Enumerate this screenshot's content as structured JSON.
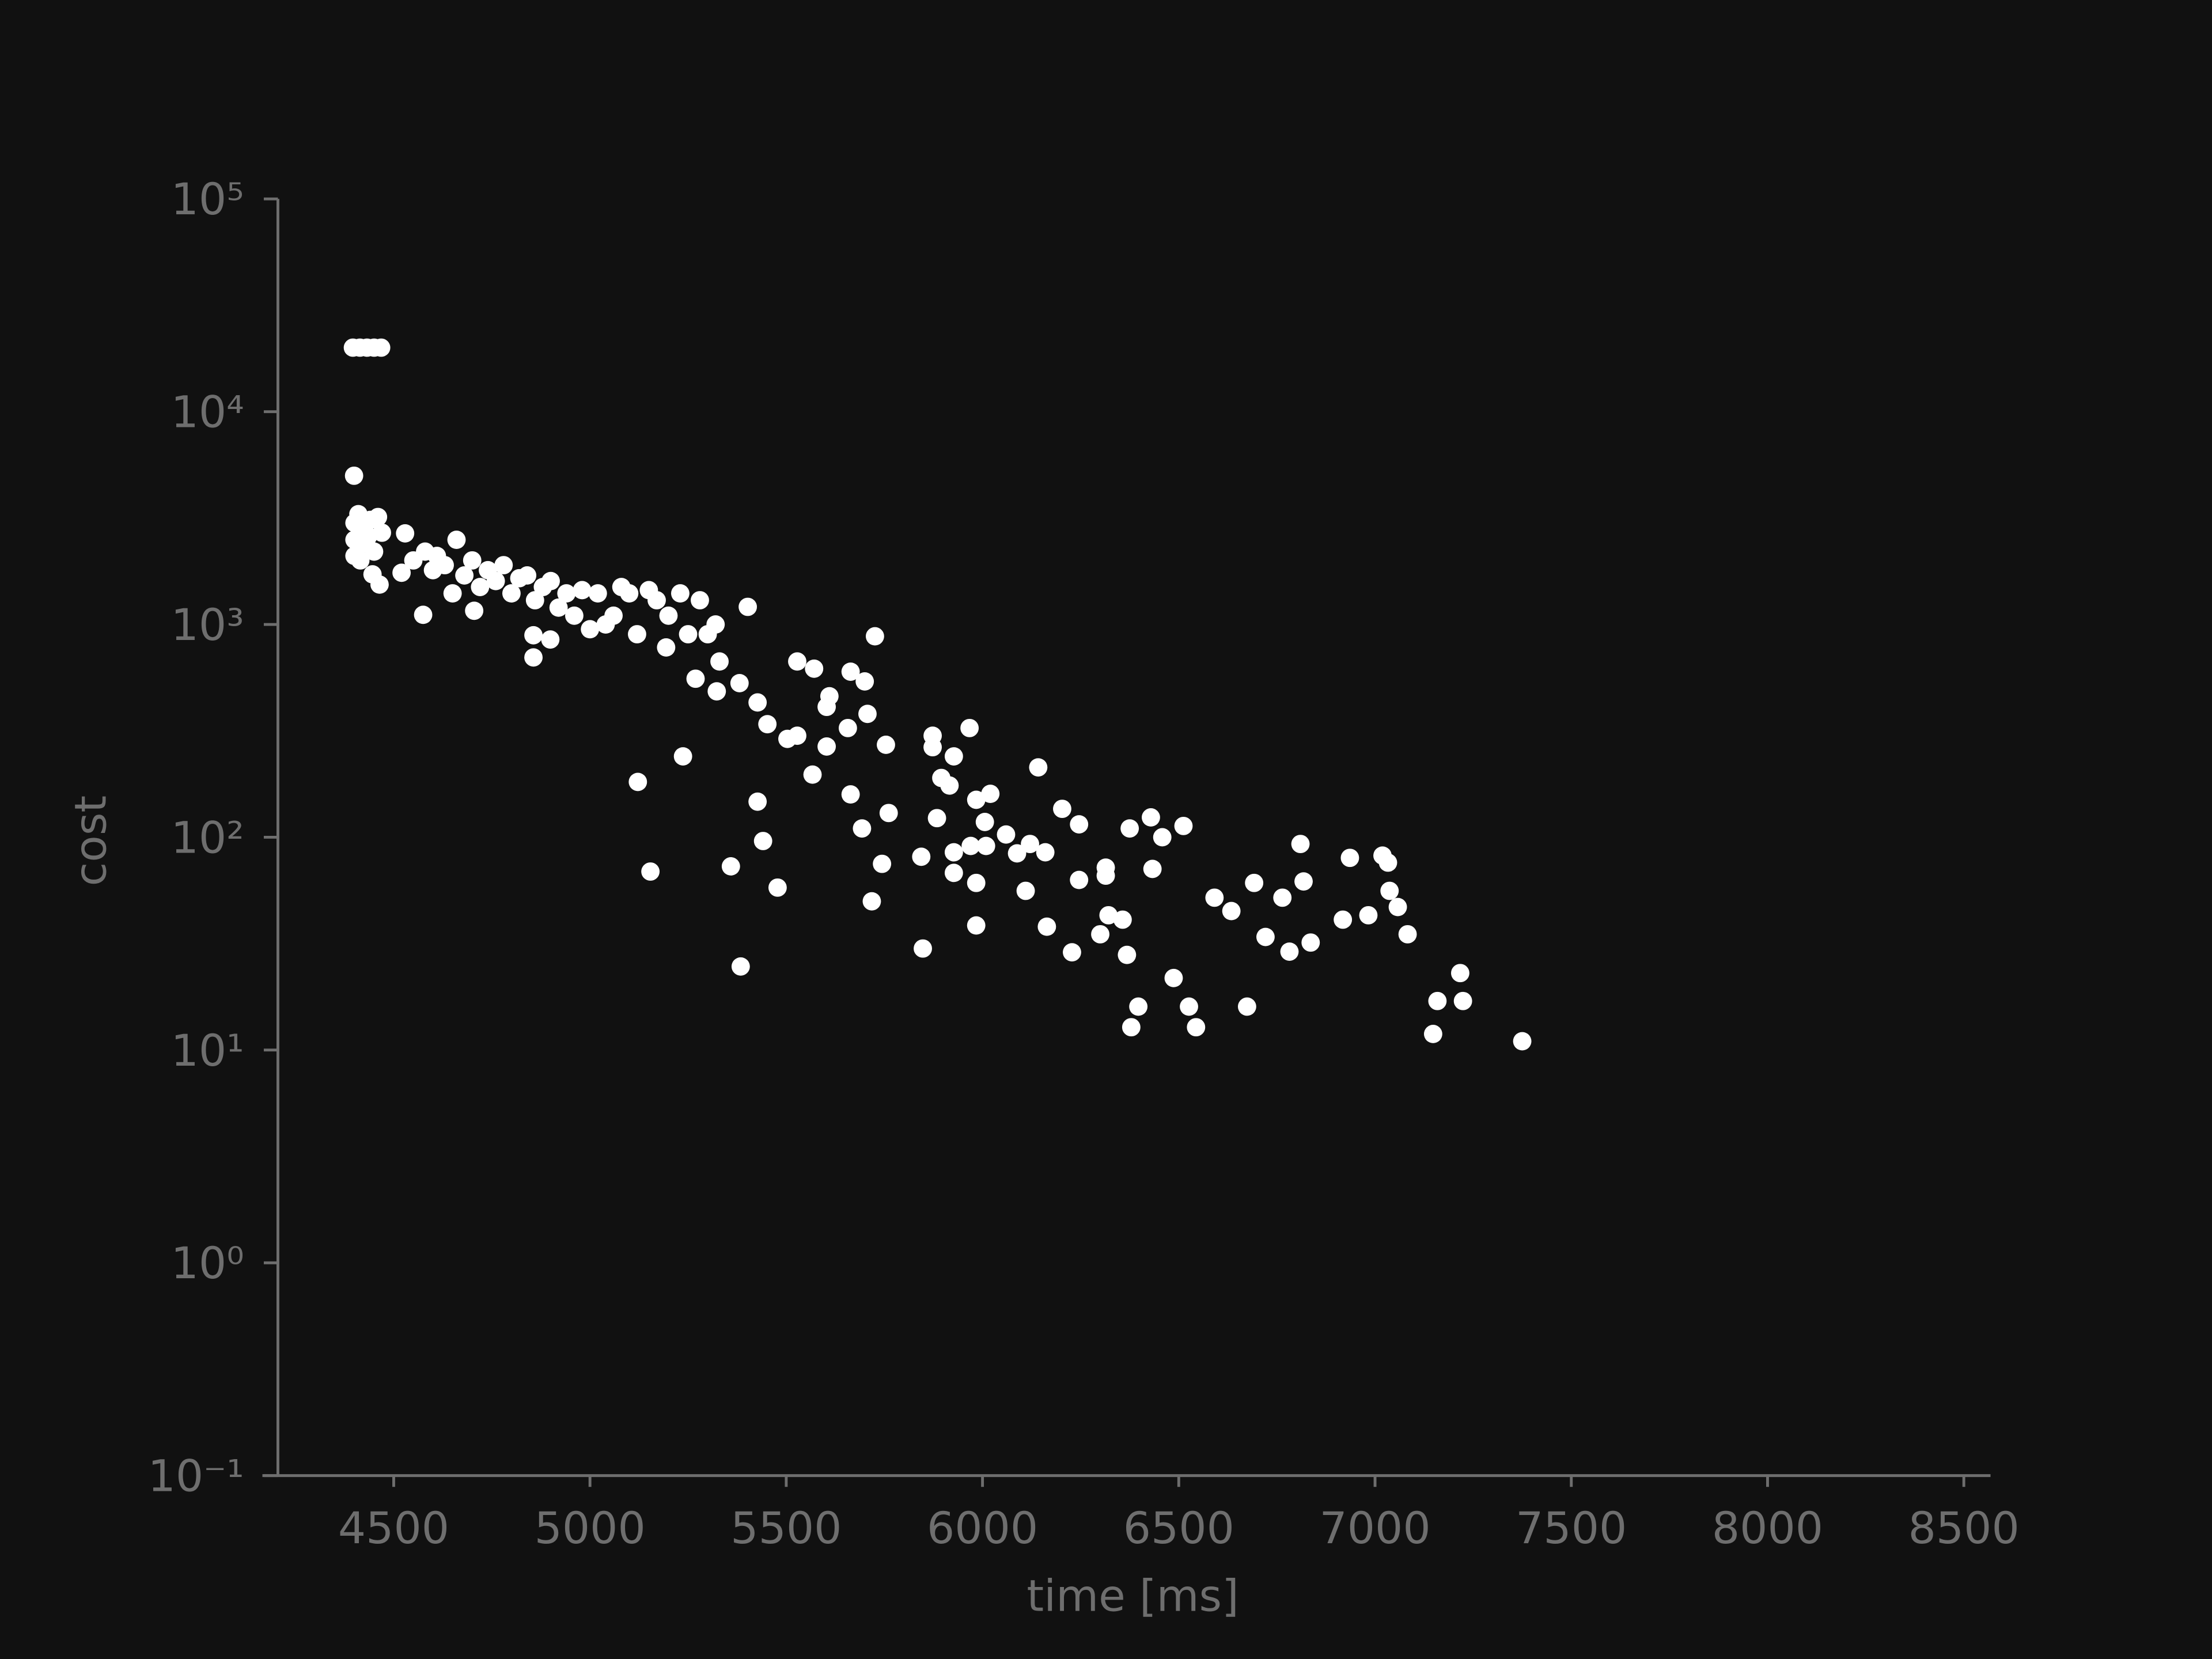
{
  "chart_data": {
    "type": "scatter",
    "x_label": "time [ms]",
    "y_label": "cost",
    "yscale": "log",
    "color": "#ffffff",
    "xlim": [
      4205,
      8568
    ],
    "xticks": [
      4500,
      5000,
      5500,
      6000,
      6500,
      7000,
      7500,
      8000,
      8500
    ],
    "ylim": [
      0.1,
      100000
    ],
    "yticks": [
      {
        "value": 0.1,
        "label": "10⁻¹"
      },
      {
        "value": 1,
        "label": "10⁰"
      },
      {
        "value": 10,
        "label": "10¹"
      },
      {
        "value": 100,
        "label": "10²"
      },
      {
        "value": 1000,
        "label": "10³"
      },
      {
        "value": 10000,
        "label": "10⁴"
      },
      {
        "value": 100000,
        "label": "10⁵"
      }
    ],
    "x": [
      4396,
      4414,
      4432,
      4450,
      4468,
      4399,
      4400,
      4400,
      4400,
      4410,
      4420,
      4430,
      4440,
      4450,
      4460,
      4470,
      4415,
      4435,
      4446,
      4464,
      4529,
      4520,
      4550,
      4580,
      4600,
      4610,
      4630,
      4650,
      4660,
      4680,
      4700,
      4720,
      4740,
      4760,
      4780,
      4800,
      4820,
      4840,
      4860,
      4880,
      4900,
      4920,
      4940,
      4960,
      4980,
      5000,
      5020,
      5040,
      5060,
      5080,
      5100,
      5120,
      5150,
      5170,
      5200,
      5230,
      5250,
      5280,
      5300,
      5320,
      4575,
      4705,
      4856,
      4856,
      4899,
      5122,
      5154,
      5194,
      5237,
      5269,
      5323,
      5330,
      5359,
      5384,
      5402,
      5381,
      5427,
      5427,
      5441,
      5452,
      5478,
      5503,
      5528,
      5528,
      5567,
      5571,
      5603,
      5603,
      5610,
      5657,
      5664,
      5664,
      5693,
      5700,
      5707,
      5718,
      5726,
      5744,
      5754,
      5761,
      5844,
      5848,
      5873,
      5873,
      5884,
      5895,
      5916,
      5927,
      5927,
      5927,
      5967,
      5970,
      5984,
      5984,
      5984,
      6006,
      6009,
      6020,
      6060,
      6088,
      6110,
      6121,
      6142,
      6160,
      6164,
      6203,
      6228,
      6246,
      6246,
      6300,
      6314,
      6314,
      6321,
      6357,
      6368,
      6375,
      6379,
      6397,
      6429,
      6433,
      6458,
      6487,
      6512,
      6526,
      6544,
      6591,
      6634,
      6674,
      6692,
      6721,
      6764,
      6782,
      6810,
      6818,
      6836,
      6918,
      6936,
      6983,
      7019,
      7033,
      7037,
      7058,
      7083,
      7148,
      7159,
      7217,
      7224,
      7375
    ],
    "values": [
      20000,
      20000,
      20000,
      20000,
      20000,
      5000,
      3000,
      2500,
      2100,
      3300,
      2800,
      2400,
      3100,
      2200,
      3200,
      2700,
      2000,
      2600,
      1720,
      1540,
      2680,
      1750,
      2000,
      2200,
      1800,
      2100,
      1900,
      1400,
      2500,
      1700,
      2000,
      1500,
      1800,
      1600,
      1900,
      1400,
      1650,
      1700,
      1300,
      1500,
      1600,
      1200,
      1400,
      1100,
      1450,
      950,
      1400,
      1000,
      1100,
      1500,
      1400,
      900,
      1450,
      1300,
      1100,
      1400,
      900,
      1300,
      900,
      1000,
      1110,
      1160,
      700,
      890,
      850,
      182,
      69,
      780,
      240,
      556,
      485,
      670,
      73,
      24.7,
      1210,
      530,
      430,
      147,
      96,
      340,
      58,
      290,
      670,
      300,
      197,
      620,
      267,
      410,
      460,
      326,
      159,
      600,
      110,
      540,
      380,
      50,
      880,
      75,
      272,
      130,
      81,
      30,
      300,
      265,
      123,
      190,
      175,
      85,
      68,
      240,
      326,
      91,
      150,
      61,
      38.5,
      118,
      91,
      160,
      103,
      84,
      56,
      93,
      213,
      85,
      38,
      136,
      28.8,
      115,
      63,
      35,
      72,
      66,
      43,
      41,
      28,
      110,
      12.8,
      16,
      124,
      71,
      100,
      21.8,
      113,
      16,
      12.8,
      52,
      45,
      16,
      61,
      34,
      52,
      29,
      93,
      62,
      32,
      41,
      80,
      43,
      82,
      76,
      56,
      47,
      35,
      11.9,
      17,
      23,
      17,
      11
    ]
  }
}
